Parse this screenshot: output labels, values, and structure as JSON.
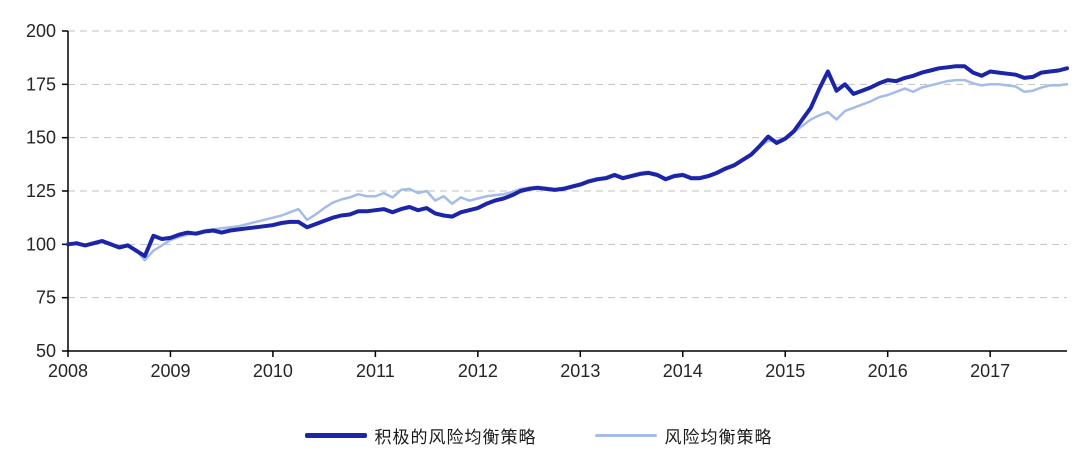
{
  "figure": {
    "background_color": "#ffffff",
    "axis_color": "#000000",
    "gridline_color": "#c2c2c2",
    "tick_label_color": "#262626"
  },
  "chart_data": {
    "type": "line",
    "title": "",
    "xlabel": "",
    "ylabel": "",
    "x_unit": "monthly, starting 2008-01",
    "x_start_year": 2008,
    "x_axis": {
      "min": 2008,
      "max": 2017.75,
      "tick_labels": [
        "2008",
        "2009",
        "2010",
        "2011",
        "2012",
        "2013",
        "2014",
        "2015",
        "2016",
        "2017"
      ]
    },
    "y_axis": {
      "min": 50,
      "max": 200,
      "ticks": [
        50,
        75,
        100,
        125,
        150,
        175,
        200
      ],
      "gridlines": [
        75,
        100,
        125,
        150,
        175,
        200
      ],
      "gridline_style": "dashed"
    },
    "legend_position": "bottom-center",
    "series": [
      {
        "name": "积极的风险均衡策略",
        "color": "#1c25a8",
        "stroke_width": 4,
        "values": [
          100,
          100.5,
          99.5,
          100.5,
          101.5,
          100,
          98.5,
          99.5,
          97,
          94.5,
          104,
          102.5,
          103,
          104.5,
          105.5,
          105,
          106,
          106.5,
          105.5,
          106.5,
          107,
          107.5,
          108,
          108.5,
          109,
          110,
          110.5,
          110.5,
          108,
          109.5,
          111,
          112.5,
          113.5,
          114,
          115.5,
          115.5,
          116,
          116.5,
          115,
          116.5,
          117.5,
          116,
          117,
          114.5,
          113.5,
          113,
          115,
          116,
          117,
          119,
          120.5,
          121.5,
          123,
          125,
          126,
          126.5,
          126,
          125.5,
          126,
          127,
          128,
          129.5,
          130.5,
          131,
          132.5,
          131,
          132,
          133,
          133.5,
          132.5,
          130.5,
          132,
          132.5,
          131,
          131,
          132,
          133.5,
          135.5,
          137,
          139.5,
          142,
          146,
          150.5,
          147.5,
          149.5,
          153,
          158.5,
          164,
          173,
          181,
          172,
          175,
          170.5,
          172,
          173.5,
          175.5,
          177,
          176.5,
          178,
          179,
          180.5,
          181.5,
          182.5,
          183,
          183.5,
          183.5,
          180.5,
          179,
          181,
          180.5,
          180,
          179.5,
          178,
          178.5,
          180.5,
          181,
          181.5,
          182.5
        ]
      },
      {
        "name": "风险均衡策略",
        "color": "#a6bce8",
        "stroke_width": 2.5,
        "values": [
          100,
          101,
          99.5,
          101,
          102,
          100.5,
          99,
          100,
          97,
          92.5,
          97,
          99.5,
          102,
          103.5,
          104.5,
          105.5,
          106.5,
          107,
          107.5,
          108,
          108.5,
          109.5,
          110.5,
          111.5,
          112.5,
          113.5,
          115,
          116.5,
          111.5,
          114,
          117,
          119.5,
          121,
          122,
          123.5,
          122.5,
          122.5,
          124,
          122,
          125.5,
          126,
          124,
          125,
          120.5,
          122.5,
          119,
          122,
          120.5,
          121.5,
          122.5,
          123,
          123.5,
          124.5,
          126,
          126.5,
          127,
          126.5,
          126,
          126.5,
          127.5,
          128.5,
          130,
          131,
          131.5,
          133,
          131.5,
          132.5,
          133.5,
          134,
          133,
          131,
          132.5,
          133,
          131.5,
          131.5,
          132.5,
          134,
          136,
          137.5,
          140,
          142.5,
          146,
          148.5,
          148.5,
          150,
          152.5,
          155.5,
          158.5,
          160.5,
          162,
          158.5,
          162.5,
          164,
          165.5,
          167,
          169,
          170,
          171.5,
          173,
          171.5,
          173.5,
          174.5,
          175.5,
          176.5,
          177,
          177,
          175.5,
          174.5,
          175,
          175,
          174.5,
          174,
          171.5,
          172,
          173.5,
          174.5,
          174.5,
          175
        ]
      }
    ]
  }
}
